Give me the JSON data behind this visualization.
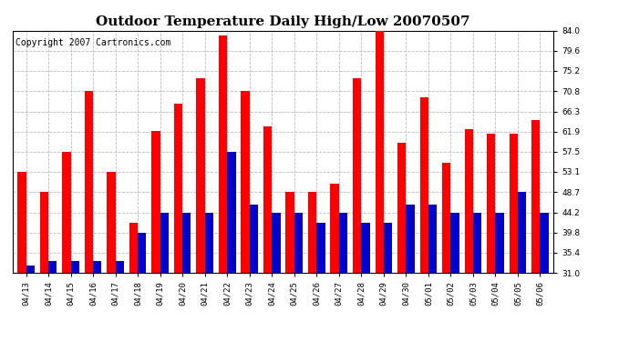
{
  "title": "Outdoor Temperature Daily High/Low 20070507",
  "copyright": "Copyright 2007 Cartronics.com",
  "dates": [
    "04/13",
    "04/14",
    "04/15",
    "04/16",
    "04/17",
    "04/18",
    "04/19",
    "04/20",
    "04/21",
    "04/22",
    "04/23",
    "04/24",
    "04/25",
    "04/26",
    "04/27",
    "04/28",
    "04/29",
    "04/30",
    "05/01",
    "05/02",
    "05/03",
    "05/04",
    "05/05",
    "05/06"
  ],
  "highs": [
    53.1,
    48.7,
    57.5,
    70.8,
    53.1,
    42.0,
    62.0,
    68.0,
    73.5,
    83.0,
    70.8,
    63.0,
    48.7,
    48.7,
    50.5,
    73.5,
    84.0,
    59.5,
    69.5,
    55.0,
    62.5,
    61.5,
    61.5,
    64.5
  ],
  "lows": [
    32.5,
    33.5,
    33.5,
    33.5,
    33.5,
    39.8,
    44.2,
    44.2,
    44.2,
    57.5,
    46.0,
    44.2,
    44.2,
    42.0,
    44.2,
    42.0,
    42.0,
    46.0,
    46.0,
    44.2,
    44.2,
    44.2,
    48.7,
    44.2
  ],
  "high_color": "#ff0000",
  "low_color": "#0000cc",
  "bg_color": "#ffffff",
  "grid_color": "#bbbbbb",
  "ylim_min": 31.0,
  "ylim_max": 84.0,
  "yticks": [
    31.0,
    35.4,
    39.8,
    44.2,
    48.7,
    53.1,
    57.5,
    61.9,
    66.3,
    70.8,
    75.2,
    79.6,
    84.0
  ],
  "bar_width": 0.38,
  "title_fontsize": 11,
  "tick_fontsize": 6.5,
  "copyright_fontsize": 7
}
